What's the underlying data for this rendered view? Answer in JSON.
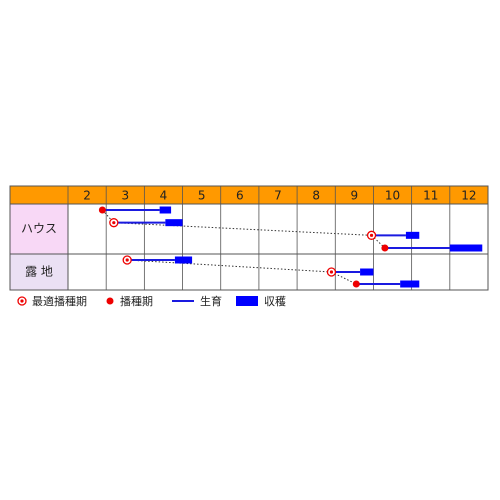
{
  "chart_data": {
    "type": "gantt",
    "xlim": [
      2,
      13
    ],
    "xticks": [
      2,
      3,
      4,
      5,
      6,
      7,
      8,
      9,
      10,
      11,
      12
    ],
    "connect": true,
    "colors": {
      "header": "#ff9900",
      "marker": "#ee0000",
      "growth": "#1a1ae0",
      "harvest": "#0000ff"
    },
    "rows": [
      {
        "name": "ハウス",
        "color": "#f8d8f6",
        "tasks": [
          {
            "marker": "sowing",
            "sow": 2.9,
            "harvest_start": 4.4,
            "harvest_end": 4.7
          },
          {
            "marker": "optimal",
            "sow": 3.2,
            "harvest_start": 4.55,
            "harvest_end": 5.0
          },
          {
            "marker": "optimal",
            "sow": 9.95,
            "harvest_start": 10.85,
            "harvest_end": 11.2
          },
          {
            "marker": "sowing",
            "sow": 10.3,
            "harvest_start": 12.0,
            "harvest_end": 12.85
          }
        ]
      },
      {
        "name": "露 地",
        "color": "#ebe0f4",
        "tasks": [
          {
            "marker": "optimal",
            "sow": 3.55,
            "harvest_start": 4.8,
            "harvest_end": 5.25
          },
          {
            "marker": "optimal",
            "sow": 8.9,
            "harvest_start": 9.65,
            "harvest_end": 10.0
          },
          {
            "marker": "sowing",
            "sow": 9.55,
            "harvest_start": 10.7,
            "harvest_end": 11.2
          }
        ]
      }
    ],
    "legend": [
      {
        "kind": "optimal",
        "label": "最適播種期"
      },
      {
        "kind": "sowing",
        "label": "播種期"
      },
      {
        "kind": "growth",
        "label": "生育"
      },
      {
        "kind": "harvest",
        "label": "収穫"
      }
    ]
  }
}
